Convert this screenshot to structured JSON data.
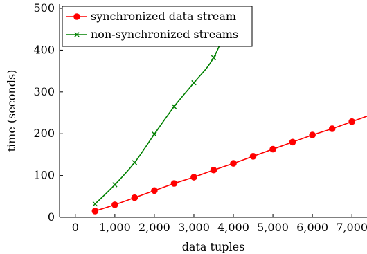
{
  "chart_data": {
    "type": "line",
    "xlabel": "data tuples",
    "ylabel": "time (seconds)",
    "xlim": [
      -400,
      7400
    ],
    "ylim": [
      0,
      510
    ],
    "xticks": [
      0,
      1000,
      2000,
      3000,
      4000,
      5000,
      6000,
      7000
    ],
    "xtick_labels": [
      "0",
      "1,000",
      "2,000",
      "3,000",
      "4,000",
      "5,000",
      "6,000",
      "7,000"
    ],
    "yticks": [
      0,
      100,
      200,
      300,
      400,
      500
    ],
    "ytick_labels": [
      "0",
      "100",
      "200",
      "300",
      "400",
      "500"
    ],
    "grid": false,
    "legend_position": "top-left",
    "series": [
      {
        "name": "synchronized data stream",
        "color": "#ff0000",
        "marker": "circle",
        "x": [
          500,
          1000,
          1500,
          2000,
          2500,
          3000,
          3500,
          4000,
          4500,
          5000,
          5500,
          6000,
          6500,
          7000,
          7500
        ],
        "y": [
          15,
          30,
          47,
          64,
          81,
          96,
          113,
          129,
          146,
          163,
          180,
          197,
          212,
          229,
          246
        ]
      },
      {
        "name": "non-synchronized streams",
        "color": "#008000",
        "marker": "x",
        "x": [
          500,
          1000,
          1500,
          2000,
          2500,
          3000,
          3500,
          4000
        ],
        "y": [
          32,
          78,
          131,
          199,
          265,
          322,
          382,
          490
        ]
      }
    ]
  }
}
